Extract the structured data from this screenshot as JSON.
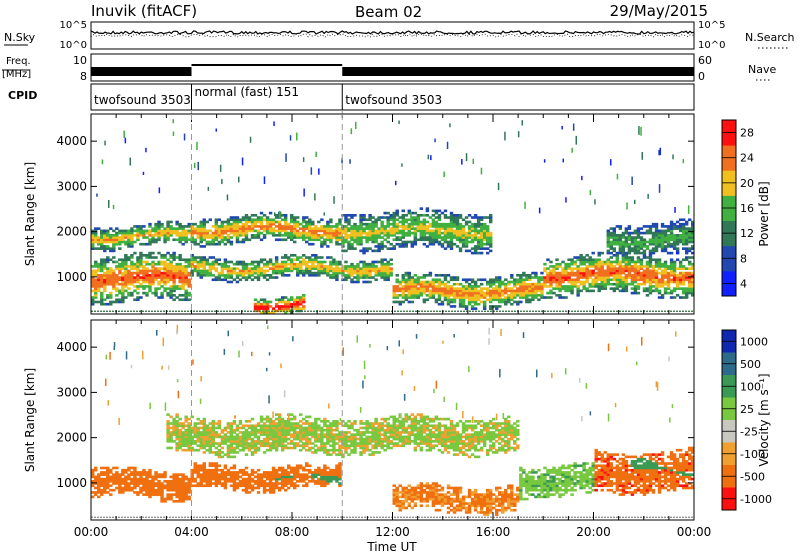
{
  "header": {
    "station": "Inuvik (fitACF)",
    "beam": "Beam 02",
    "date": "29/May/2015"
  },
  "status": {
    "left_labels": {
      "nsky": "N.Sky",
      "freq": "Freq.",
      "freq_unit": "[MHz]",
      "cpid": "CPID"
    },
    "right_labels": {
      "nsearch": "N.Search",
      "nave": "Nave"
    },
    "nsky_ticks": [
      "10^5",
      "10^0"
    ],
    "nsearch_ticks": [
      "10^5",
      "10^0"
    ],
    "freq_ticks": [
      "10",
      "8"
    ],
    "nave_ticks": [
      "60",
      "0"
    ],
    "cpid_segments": [
      {
        "label": "twofsound 3503",
        "start_hour": 0,
        "end_hour": 4
      },
      {
        "label": "normal (fast) 151",
        "start_hour": 4,
        "end_hour": 10
      },
      {
        "label": "twofsound 3503",
        "start_hour": 10,
        "end_hour": 24
      }
    ]
  },
  "chart_data": [
    {
      "type": "heatmap",
      "parameter": "Power",
      "xlabel": "Time UT",
      "ylabel": "Slant Range [km]",
      "x_ticks": [
        "00:00",
        "04:00",
        "08:00",
        "12:00",
        "16:00",
        "20:00",
        "00:00"
      ],
      "xlim_hours": [
        0,
        24
      ],
      "y_ticks": [
        1000,
        2000,
        3000,
        4000
      ],
      "ylim_km": [
        180,
        4600
      ],
      "colorbar_label": "Power [dB]",
      "colorbar_ticks": [
        4,
        8,
        12,
        16,
        20,
        24,
        28
      ],
      "colorbar_colors": [
        "#1020ff",
        "#2048b0",
        "#307858",
        "#40b040",
        "#f0c020",
        "#f07020",
        "#ff1010"
      ],
      "bands": [
        {
          "start_hour": 0,
          "end_hour": 4,
          "range_low": 450,
          "range_high": 1500,
          "peak_db": 26
        },
        {
          "start_hour": 0,
          "end_hour": 4,
          "range_low": 1650,
          "range_high": 2150,
          "peak_db": 22
        },
        {
          "start_hour": 4,
          "end_hour": 10,
          "range_low": 1750,
          "range_high": 2350,
          "peak_db": 24
        },
        {
          "start_hour": 4,
          "end_hour": 12,
          "range_low": 950,
          "range_high": 1450,
          "peak_db": 22
        },
        {
          "start_hour": 6.5,
          "end_hour": 8.5,
          "range_low": 200,
          "range_high": 600,
          "peak_db": 30
        },
        {
          "start_hour": 10,
          "end_hour": 16,
          "range_low": 1600,
          "range_high": 2450,
          "peak_db": 20
        },
        {
          "start_hour": 12,
          "end_hour": 18,
          "range_low": 350,
          "range_high": 1050,
          "peak_db": 24
        },
        {
          "start_hour": 18,
          "end_hour": 24,
          "range_low": 600,
          "range_high": 1500,
          "peak_db": 26
        },
        {
          "start_hour": 20.5,
          "end_hour": 24,
          "range_low": 1450,
          "range_high": 2200,
          "peak_db": 16
        }
      ]
    },
    {
      "type": "heatmap",
      "parameter": "Velocity",
      "xlabel": "Time UT",
      "ylabel": "Slant Range [km]",
      "x_ticks": [
        "00:00",
        "04:00",
        "08:00",
        "12:00",
        "16:00",
        "20:00",
        "00:00"
      ],
      "xlim_hours": [
        0,
        24
      ],
      "y_ticks": [
        1000,
        2000,
        3000,
        4000
      ],
      "ylim_km": [
        180,
        4600
      ],
      "colorbar_label": "Velocity [m s⁻¹]",
      "colorbar_ticks": [
        "1000",
        "500",
        "100",
        "25",
        "-25",
        "-100",
        "-500",
        "-1000"
      ],
      "colorbar_colors": [
        "#1028b0",
        "#2e6a8a",
        "#3a9a55",
        "#78c840",
        "#c8c8c0",
        "#f0a030",
        "#f07010",
        "#ff1010"
      ],
      "bands": [
        {
          "start_hour": 0,
          "end_hour": 4,
          "range_low": 650,
          "range_high": 1300,
          "velocity": -300
        },
        {
          "start_hour": 3,
          "end_hour": 17,
          "range_low": 1650,
          "range_high": 2450,
          "velocity": 0
        },
        {
          "start_hour": 4,
          "end_hour": 10,
          "range_low": 850,
          "range_high": 1400,
          "velocity": -300
        },
        {
          "start_hour": 7,
          "end_hour": 10,
          "range_low": 900,
          "range_high": 1300,
          "velocity": 250
        },
        {
          "start_hour": 12,
          "end_hour": 17,
          "range_low": 350,
          "range_high": 950,
          "velocity": -120
        },
        {
          "start_hour": 17,
          "end_hour": 20,
          "range_low": 700,
          "range_high": 1400,
          "velocity": 60
        },
        {
          "start_hour": 20,
          "end_hour": 24,
          "range_low": 800,
          "range_high": 1700,
          "velocity": -450
        },
        {
          "start_hour": 21.5,
          "end_hour": 24,
          "range_low": 1100,
          "range_high": 1500,
          "velocity": 250
        }
      ]
    }
  ]
}
